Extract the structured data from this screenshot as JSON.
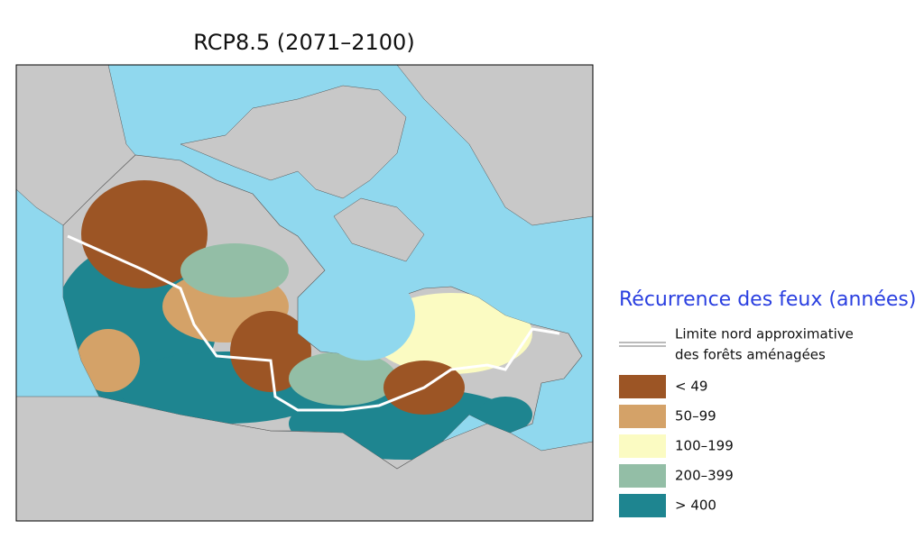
{
  "title": "RCP8.5 (2071–2100)",
  "legend": {
    "title": "Récurrence des feux (années)",
    "boundary_label": [
      "Limite nord approximative",
      "des forêts aménagées"
    ],
    "items": [
      {
        "label": "< 49",
        "color": "#9c5525"
      },
      {
        "label": "50–99",
        "color": "#d4a268"
      },
      {
        "label": "100–199",
        "color": "#fbfbc2"
      },
      {
        "label": "200–399",
        "color": "#93bea6"
      },
      {
        "label": "> 400",
        "color": "#1e8590"
      }
    ]
  }
}
